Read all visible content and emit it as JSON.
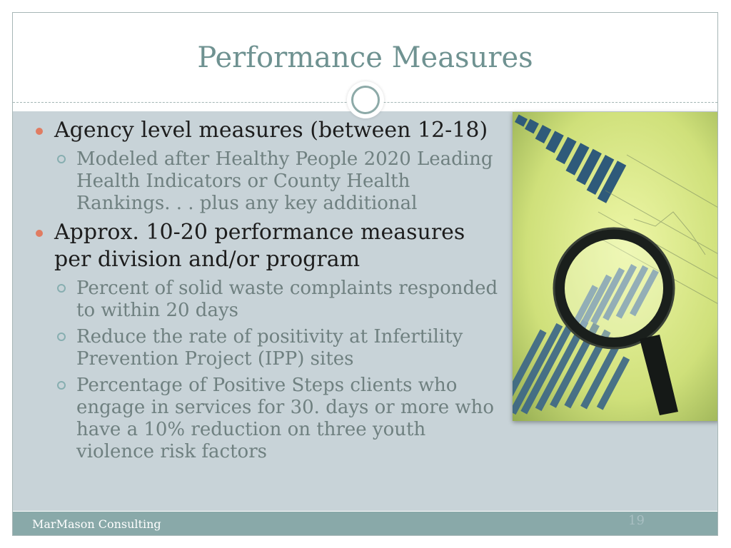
{
  "slide": {
    "title": "Performance Measures",
    "items": [
      {
        "text": "Agency level measures (between 12-18)",
        "level": 1
      },
      {
        "text": "Modeled after Healthy People 2020 Leading Health Indicators or County Health Rankings. . . plus any key additional",
        "level": 2
      },
      {
        "text": "Approx. 10-20 performance measures per division and/or program",
        "level": 1
      },
      {
        "text": "Percent of solid waste complaints responded to within 20 days",
        "level": 2
      },
      {
        "text": "Reduce the rate of positivity at Infertility Prevention Project (IPP) sites",
        "level": 2
      },
      {
        "text": "Percentage of Positive Steps clients who engage in services for 30. days or more who have a 10% reduction on three youth violence risk factors",
        "level": 2
      }
    ],
    "footer": "MarMason Consulting",
    "page_number": "19"
  },
  "colors": {
    "title": "#6f9291",
    "content_background": "#c8d3d8",
    "footer_background": "#89a9a9",
    "bullet_level1": "#e07c62",
    "bullet_level2": "#87aeb0"
  },
  "image": {
    "icon": "magnifying-glass-over-charts-photo"
  }
}
